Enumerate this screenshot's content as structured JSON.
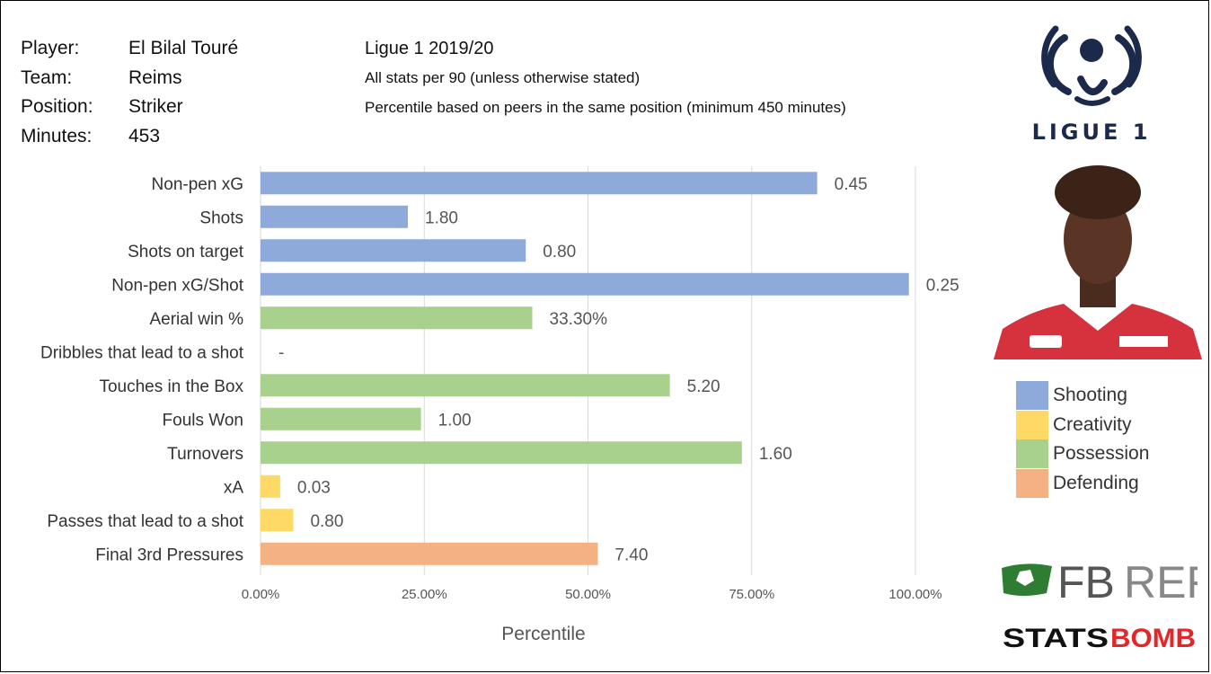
{
  "player_info": [
    {
      "key": "Player:",
      "value": "El Bilal Touré"
    },
    {
      "key": "Team:",
      "value": "Reims"
    },
    {
      "key": "Position:",
      "value": "Striker"
    },
    {
      "key": "Minutes:",
      "value": "453"
    }
  ],
  "meta": {
    "season": "Ligue 1 2019/20",
    "note1": "All stats per 90 (unless otherwise stated)",
    "note2": "Percentile based on peers in the same position (minimum 450 minutes)"
  },
  "logos": {
    "ligue1": "LIGUE 1",
    "fbref_fb": "FB",
    "fbref_ref": "REF",
    "statsbomb_a": "STATS",
    "statsbomb_b": "BOMB"
  },
  "colors": {
    "Shooting": "#8eaadb",
    "Creativity": "#ffd966",
    "Possession": "#a9d18e",
    "Defending": "#f4b183"
  },
  "chart_data": {
    "type": "bar",
    "orientation": "horizontal",
    "xlabel": "Percentile",
    "xlim": [
      0,
      100
    ],
    "xticks": [
      "0.00%",
      "25.00%",
      "50.00%",
      "75.00%",
      "100.00%"
    ],
    "grid": true,
    "legend": [
      "Shooting",
      "Creativity",
      "Possession",
      "Defending"
    ],
    "legend_position": "right",
    "bars": [
      {
        "category": "Non-pen xG",
        "percentile": 85,
        "label": "0.45",
        "group": "Shooting"
      },
      {
        "category": "Shots",
        "percentile": 22.5,
        "label": "1.80",
        "group": "Shooting"
      },
      {
        "category": "Shots on target",
        "percentile": 40.5,
        "label": "0.80",
        "group": "Shooting"
      },
      {
        "category": "Non-pen xG/Shot",
        "percentile": 99,
        "label": "0.25",
        "group": "Shooting"
      },
      {
        "category": "Aerial win %",
        "percentile": 41.5,
        "label": "33.30%",
        "group": "Possession"
      },
      {
        "category": "Dribbles that lead to a shot",
        "percentile": 0,
        "label": "-",
        "group": "Possession"
      },
      {
        "category": "Touches in the Box",
        "percentile": 62.5,
        "label": "5.20",
        "group": "Possession"
      },
      {
        "category": "Fouls Won",
        "percentile": 24.5,
        "label": "1.00",
        "group": "Possession"
      },
      {
        "category": "Turnovers",
        "percentile": 73.5,
        "label": "1.60",
        "group": "Possession"
      },
      {
        "category": "xA",
        "percentile": 3,
        "label": "0.03",
        "group": "Creativity"
      },
      {
        "category": "Passes that lead to a shot",
        "percentile": 5,
        "label": "0.80",
        "group": "Creativity"
      },
      {
        "category": "Final 3rd Pressures",
        "percentile": 51.5,
        "label": "7.40",
        "group": "Defending"
      }
    ]
  }
}
